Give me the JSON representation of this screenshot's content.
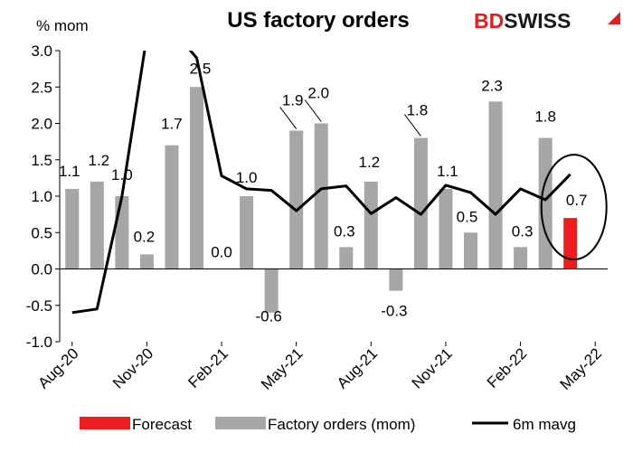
{
  "chart_data": {
    "type": "bar",
    "title": "US factory orders",
    "ylabel": "% mom",
    "ylim": [
      -1.0,
      3.0
    ],
    "yticks": [
      "3.0",
      "2.5",
      "2.0",
      "1.5",
      "1.0",
      "0.5",
      "0.0",
      "-0.5",
      "-1.0"
    ],
    "xtick_labels": [
      "Aug-20",
      "Nov-20",
      "Feb-21",
      "May-21",
      "Aug-21",
      "Nov-21",
      "Feb-22",
      "May-22"
    ],
    "categories": [
      "Aug-20",
      "Sep-20",
      "Oct-20",
      "Nov-20",
      "Dec-20",
      "Jan-21",
      "Feb-21",
      "Mar-21",
      "Apr-21",
      "May-21",
      "Jun-21",
      "Jul-21",
      "Aug-21",
      "Sep-21",
      "Oct-21",
      "Nov-21",
      "Dec-21",
      "Jan-22",
      "Feb-22",
      "Mar-22",
      "Apr-22",
      "May-22"
    ],
    "series": [
      {
        "name": "Factory orders (mom)",
        "color": "#a6a6a6",
        "values": [
          1.1,
          1.2,
          1.0,
          0.2,
          1.7,
          2.5,
          0.0,
          1.0,
          -0.6,
          1.9,
          2.0,
          0.3,
          1.2,
          -0.3,
          1.8,
          1.1,
          0.5,
          2.3,
          0.3,
          1.8,
          null,
          null
        ],
        "labels": [
          "1.1",
          "1.2",
          "1.0",
          "0.2",
          "1.7",
          "2.5",
          "0.0",
          "1.0",
          "-0.6",
          "1.9",
          "2.0",
          "0.3",
          "1.2",
          "-0.3",
          "1.8",
          "1.1",
          "0.5",
          "2.3",
          "0.3",
          "1.8",
          "",
          ""
        ]
      },
      {
        "name": "Forecast",
        "color": "#ee1c1c",
        "values": [
          null,
          null,
          null,
          null,
          null,
          null,
          null,
          null,
          null,
          null,
          null,
          null,
          null,
          null,
          null,
          null,
          null,
          null,
          null,
          null,
          0.7,
          null
        ],
        "labels": [
          "",
          "",
          "",
          "",
          "",
          "",
          "",
          "",
          "",
          "",
          "",
          "",
          "",
          "",
          "",
          "",
          "",
          "",
          "",
          "",
          "0.7",
          ""
        ]
      },
      {
        "name": "6m mavg",
        "type": "line",
        "color": "#000000",
        "values": [
          -0.6,
          -0.55,
          1.0,
          3.2,
          3.3,
          2.9,
          1.28,
          1.1,
          1.08,
          0.8,
          1.1,
          1.14,
          0.76,
          0.98,
          0.75,
          1.15,
          1.05,
          0.75,
          1.1,
          0.95,
          1.3,
          null
        ]
      }
    ],
    "legend": {
      "position": "bottom",
      "entries": [
        {
          "label": "Forecast",
          "color": "#ee1c1c",
          "kind": "bar"
        },
        {
          "label": "Factory orders (mom)",
          "color": "#a6a6a6",
          "kind": "bar"
        },
        {
          "label": "6m mavg",
          "color": "#000000",
          "kind": "line"
        }
      ]
    },
    "annotation": "forecast-circle",
    "grid": false
  },
  "brand": {
    "logo_bd": "BD",
    "logo_swiss": "SWISS",
    "logo_color": "#e02020"
  }
}
